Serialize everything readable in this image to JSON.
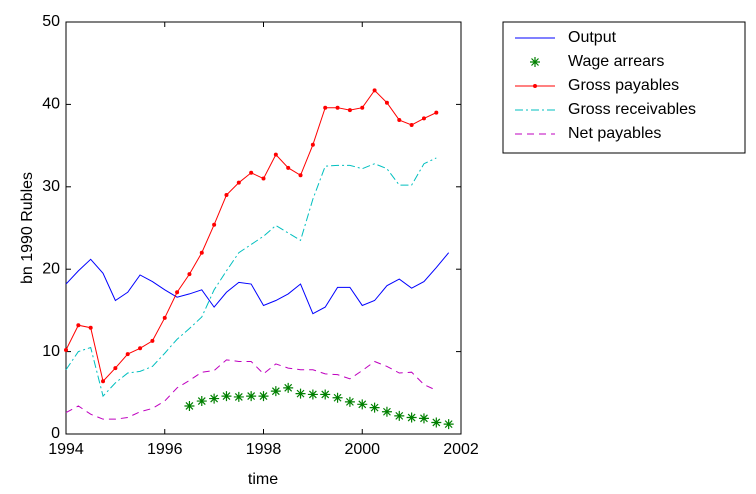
{
  "chart_data": {
    "type": "line",
    "xlabel": "time",
    "ylabel": "bn 1990 Rubles",
    "xlim": [
      1994,
      2002
    ],
    "xticks": [
      1994,
      1996,
      1998,
      2000,
      2002
    ],
    "ylim": [
      0,
      50
    ],
    "yticks": [
      0,
      10,
      20,
      30,
      40,
      50
    ],
    "grid": false,
    "legend": "outside-upper-right",
    "series": [
      {
        "name": "Output",
        "color": "#0000ff",
        "linestyle": "-",
        "marker": "none",
        "x": [
          1994,
          1994.25,
          1994.5,
          1994.75,
          1995,
          1995.25,
          1995.5,
          1995.75,
          1996,
          1996.25,
          1996.5,
          1996.75,
          1997,
          1997.25,
          1997.5,
          1997.75,
          1998,
          1998.25,
          1998.5,
          1998.75,
          1999,
          1999.25,
          1999.5,
          1999.75,
          2000,
          2000.25,
          2000.5,
          2000.75,
          2001,
          2001.25,
          2001.5,
          2001.75
        ],
        "values": [
          18.2,
          19.8,
          21.2,
          19.5,
          16.2,
          17.2,
          19.3,
          18.5,
          17.5,
          16.6,
          17,
          17.5,
          15.4,
          17.2,
          18.4,
          18.2,
          15.6,
          16.2,
          17,
          18.2,
          14.6,
          15.4,
          17.8,
          17.8,
          15.6,
          16.2,
          18,
          18.8,
          17.7,
          18.5,
          20.2,
          22
        ]
      },
      {
        "name": "Wage arrears",
        "color": "#008000",
        "linestyle": "none",
        "marker": "*",
        "x": [
          1996.5,
          1996.75,
          1997,
          1997.25,
          1997.5,
          1997.75,
          1998,
          1998.25,
          1998.5,
          1998.75,
          1999,
          1999.25,
          1999.5,
          1999.75,
          2000,
          2000.25,
          2000.5,
          2000.75,
          2001,
          2001.25,
          2001.5,
          2001.75
        ],
        "values": [
          3.4,
          4.0,
          4.3,
          4.6,
          4.5,
          4.6,
          4.6,
          5.2,
          5.6,
          4.9,
          4.8,
          4.8,
          4.4,
          3.9,
          3.6,
          3.2,
          2.7,
          2.2,
          2.0,
          1.9,
          1.4,
          1.2
        ]
      },
      {
        "name": "Gross payables",
        "color": "#ff0000",
        "linestyle": "-",
        "marker": ".",
        "x": [
          1994,
          1994.25,
          1994.5,
          1994.75,
          1995,
          1995.25,
          1995.5,
          1995.75,
          1996,
          1996.25,
          1996.5,
          1996.75,
          1997,
          1997.25,
          1997.5,
          1997.75,
          1998,
          1998.25,
          1998.5,
          1998.75,
          1999,
          1999.25,
          1999.5,
          1999.75,
          2000,
          2000.25,
          2000.5,
          2000.75,
          2001,
          2001.25,
          2001.5
        ],
        "values": [
          10.2,
          13.2,
          12.9,
          6.4,
          8,
          9.7,
          10.4,
          11.3,
          14.1,
          17.2,
          19.4,
          22,
          25.4,
          29,
          30.5,
          31.7,
          31,
          33.9,
          32.3,
          31.4,
          35.1,
          39.6,
          39.6,
          39.3,
          39.6,
          41.7,
          40.2,
          38.1,
          37.5,
          38.3,
          39
        ]
      },
      {
        "name": "Gross receivables",
        "color": "#00bfbf",
        "linestyle": "-.",
        "marker": "none",
        "x": [
          1994,
          1994.25,
          1994.5,
          1994.75,
          1995,
          1995.25,
          1995.5,
          1995.75,
          1996,
          1996.25,
          1996.5,
          1996.75,
          1997,
          1997.25,
          1997.5,
          1997.75,
          1998,
          1998.25,
          1998.5,
          1998.75,
          1999,
          1999.25,
          1999.5,
          1999.75,
          2000,
          2000.25,
          2000.5,
          2000.75,
          2001,
          2001.25,
          2001.5
        ],
        "values": [
          7.8,
          10,
          10.5,
          4.6,
          6.2,
          7.4,
          7.6,
          8.2,
          9.8,
          11.5,
          12.8,
          14.2,
          17.5,
          19.8,
          22,
          23,
          24,
          25.3,
          24.4,
          23.5,
          28.5,
          32.5,
          32.6,
          32.6,
          32.2,
          32.8,
          32.2,
          30.2,
          30.2,
          32.8,
          33.5
        ]
      },
      {
        "name": "Net payables",
        "color": "#bf00bf",
        "linestyle": "--",
        "marker": "none",
        "x": [
          1994,
          1994.25,
          1994.5,
          1994.75,
          1995,
          1995.25,
          1995.5,
          1995.75,
          1996,
          1996.25,
          1996.5,
          1996.75,
          1997,
          1997.25,
          1997.5,
          1997.75,
          1998,
          1998.25,
          1998.5,
          1998.75,
          1999,
          1999.25,
          1999.5,
          1999.75,
          2000,
          2000.25,
          2000.5,
          2000.75,
          2001,
          2001.25,
          2001.5
        ],
        "values": [
          2.6,
          3.4,
          2.4,
          1.8,
          1.8,
          2,
          2.7,
          3.1,
          4,
          5.6,
          6.5,
          7.5,
          7.7,
          9,
          8.8,
          8.8,
          7.3,
          8.5,
          8,
          7.8,
          7.8,
          7.3,
          7.2,
          6.7,
          7.7,
          8.8,
          8.2,
          7.4,
          7.5,
          6,
          5.3
        ]
      }
    ]
  }
}
